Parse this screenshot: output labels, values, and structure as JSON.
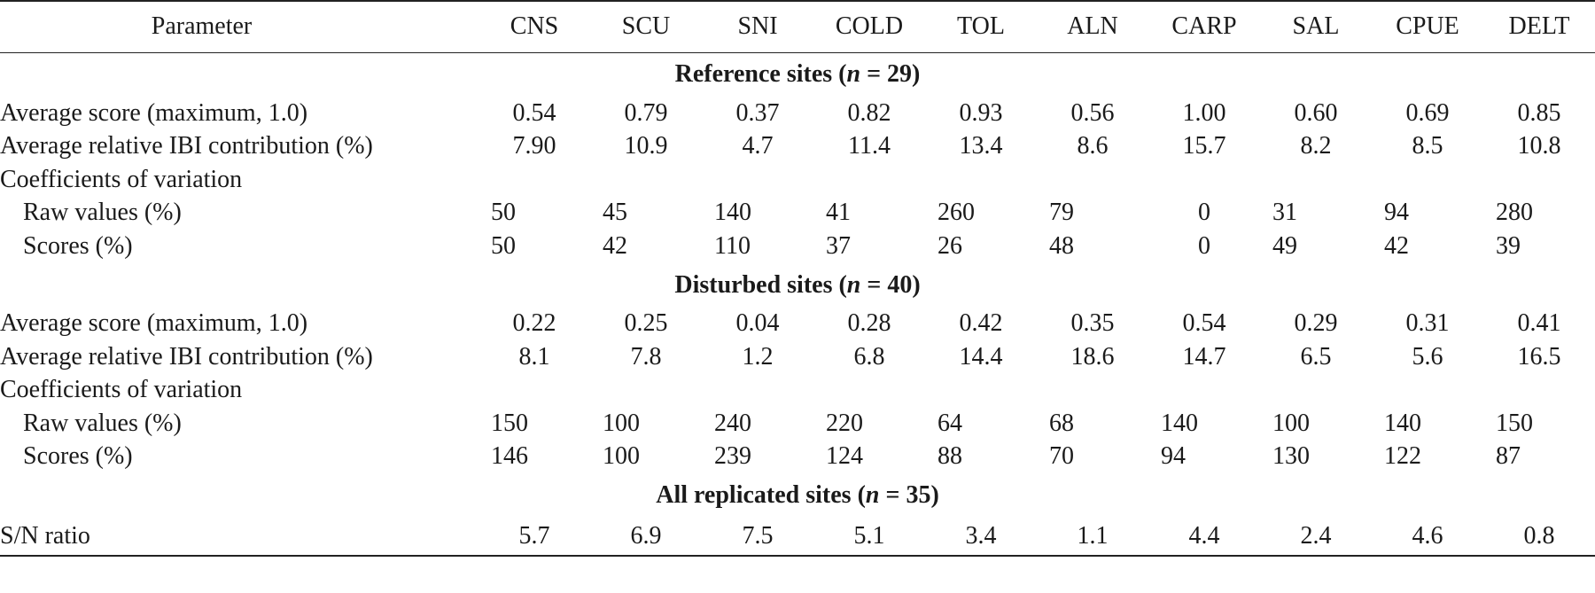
{
  "table": {
    "header": {
      "parameter": "Parameter",
      "columns": [
        "CNS",
        "SCU",
        "SNI",
        "COLD",
        "TOL",
        "ALN",
        "CARP",
        "SAL",
        "CPUE",
        "DELT"
      ]
    },
    "sections": [
      {
        "title_prefix": "Reference sites (",
        "title_var": "n",
        "title_suffix": " = 29)",
        "rows": [
          {
            "label": "Average score (maximum, 1.0)",
            "values": [
              "0.54",
              "0.79",
              "0.37",
              "0.82",
              "0.93",
              "0.56",
              "1.00",
              "0.60",
              "0.69",
              "0.85"
            ]
          },
          {
            "label": "Average relative IBI contribution (%)",
            "values": [
              "7.90",
              "10.9",
              "4.7",
              "11.4",
              "13.4",
              "8.6",
              "15.7",
              "8.2",
              "8.5",
              "10.8"
            ]
          },
          {
            "label": "Coefficients of variation"
          },
          {
            "label": "Raw values (%)",
            "values": [
              "50",
              "45",
              "140",
              "41",
              "260",
              "79",
              "0",
              "31",
              "94",
              "280"
            ]
          },
          {
            "label": "Scores (%)",
            "values": [
              "50",
              "42",
              "110",
              "37",
              "26",
              "48",
              "0",
              "49",
              "42",
              "39"
            ]
          }
        ]
      },
      {
        "title_prefix": "Disturbed sites (",
        "title_var": "n",
        "title_suffix": " = 40)",
        "rows": [
          {
            "label": "Average score (maximum, 1.0)",
            "values": [
              "0.22",
              "0.25",
              "0.04",
              "0.28",
              "0.42",
              "0.35",
              "0.54",
              "0.29",
              "0.31",
              "0.41"
            ]
          },
          {
            "label": "Average relative IBI contribution (%)",
            "values": [
              "8.1",
              "7.8",
              "1.2",
              "6.8",
              "14.4",
              "18.6",
              "14.7",
              "6.5",
              "5.6",
              "16.5"
            ]
          },
          {
            "label": "Coefficients of variation"
          },
          {
            "label": "Raw values (%)",
            "values": [
              "150",
              "100",
              "240",
              "220",
              "64",
              "68",
              "140",
              "100",
              "140",
              "150"
            ]
          },
          {
            "label": "Scores (%)",
            "values": [
              "146",
              "100",
              "239",
              "124",
              "88",
              "70",
              "94",
              "130",
              "122",
              "87"
            ]
          }
        ]
      },
      {
        "title_prefix": "All replicated sites (",
        "title_var": "n",
        "title_suffix": " = 35)",
        "rows": [
          {
            "label": "S/N ratio",
            "values": [
              "5.7",
              "6.9",
              "7.5",
              "5.1",
              "3.4",
              "1.1",
              "4.4",
              "2.4",
              "4.6",
              "0.8"
            ]
          }
        ]
      }
    ]
  }
}
